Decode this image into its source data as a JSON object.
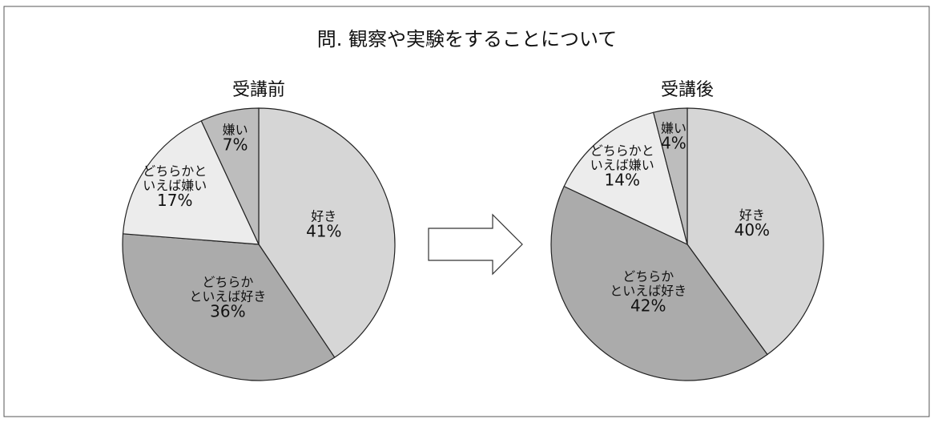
{
  "title": "問. 観察や実験をすることについて",
  "chart_data": [
    {
      "type": "pie",
      "title": "受講前",
      "categories": [
        [
          "好き"
        ],
        [
          "どちらか",
          "といえば好き"
        ],
        [
          "どちらかと",
          "いえば嫌い"
        ],
        [
          "嫌い"
        ]
      ],
      "values": [
        41,
        36,
        17,
        7
      ],
      "value_labels": [
        "41%",
        "36%",
        "17%",
        "7%"
      ],
      "colors": [
        "#d6d6d6",
        "#ababab",
        "#ececec",
        "#bdbdbd"
      ]
    },
    {
      "type": "pie",
      "title": "受講後",
      "categories": [
        [
          "好き"
        ],
        [
          "どちらか",
          "といえば好き"
        ],
        [
          "どちらかと",
          "いえば嫌い"
        ],
        [
          "嫌い"
        ]
      ],
      "values": [
        40,
        42,
        14,
        4
      ],
      "value_labels": [
        "40%",
        "42%",
        "14%",
        "4%"
      ],
      "colors": [
        "#d6d6d6",
        "#ababab",
        "#ececec",
        "#bdbdbd"
      ]
    }
  ]
}
